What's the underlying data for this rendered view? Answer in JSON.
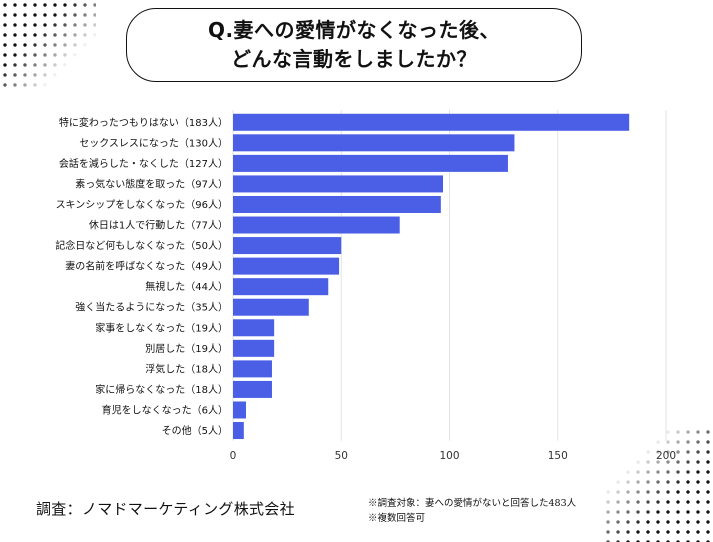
{
  "title": {
    "line1": "Q.妻への愛情がなくなった後、",
    "line2": "どんな言動をしましたか？"
  },
  "chart_data": {
    "type": "bar",
    "orientation": "horizontal",
    "categories": [
      "特に変わったつもりはない（183人）",
      "セックスレスになった（130人）",
      "会話を減らした・なくした（127人）",
      "素っ気ない態度を取った（97人）",
      "スキンシップをしなくなった（96人）",
      "休日は1人で行動した（77人）",
      "記念日など何もしなくなった（50人）",
      "妻の名前を呼ばなくなった（49人）",
      "無視した（44人）",
      "強く当たるようになった（35人）",
      "家事をしなくなった（19人）",
      "別居した（19人）",
      "浮気した（18人）",
      "家に帰らなくなった（18人）",
      "育児をしなくなった（6人）",
      "その他（5人）"
    ],
    "values": [
      183,
      130,
      127,
      97,
      96,
      77,
      50,
      49,
      44,
      35,
      19,
      19,
      18,
      18,
      6,
      5
    ],
    "xlim": [
      0,
      200
    ],
    "xticks": [
      "0",
      "50",
      "100",
      "150",
      "200"
    ],
    "grid": true,
    "bar_color": "#4a5fe6"
  },
  "footer": {
    "company": "調査：ノマドマーケティング株式会社",
    "note1": "※調査対象：妻への愛情がないと回答した483人",
    "note2": "※複数回答可"
  }
}
